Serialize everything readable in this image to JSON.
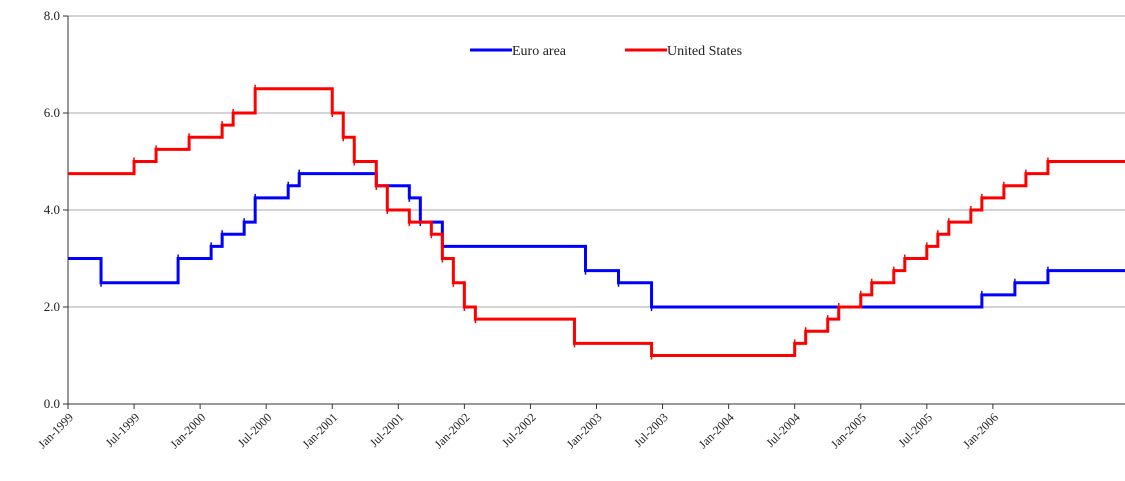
{
  "chart_data": {
    "type": "line",
    "step": true,
    "ylim": [
      0,
      8
    ],
    "yticks": [
      "0.0",
      "2.0",
      "4.0",
      "6.0",
      "8.0"
    ],
    "xlim": [
      "1999-01",
      "2007-01"
    ],
    "xtick_labels": [
      "Jan-1999",
      "Jul-1999",
      "Jan-2000",
      "Jul-2000",
      "Jan-2001",
      "Jul-2001",
      "Jan-2002",
      "Jul-2002",
      "Jan-2003",
      "Jul-2003",
      "Jan-2004",
      "Jul-2004",
      "Jan-2005",
      "Jul-2005",
      "Jan-2006"
    ],
    "xtick_dates": [
      "1999-01",
      "1999-07",
      "2000-01",
      "2000-07",
      "2001-01",
      "2001-07",
      "2002-01",
      "2002-07",
      "2003-01",
      "2003-07",
      "2004-01",
      "2004-07",
      "2005-01",
      "2005-07",
      "2006-01"
    ],
    "grid": "horizontal",
    "legend_position": "top-center",
    "series": [
      {
        "name": "Euro area",
        "color": "#0000ff",
        "points": [
          [
            "1999-01",
            3.0
          ],
          [
            "1999-04",
            2.5
          ],
          [
            "1999-11",
            3.0
          ],
          [
            "2000-02",
            3.25
          ],
          [
            "2000-03",
            3.5
          ],
          [
            "2000-05",
            3.75
          ],
          [
            "2000-06",
            4.25
          ],
          [
            "2000-09",
            4.5
          ],
          [
            "2000-10",
            4.75
          ],
          [
            "2001-05",
            4.5
          ],
          [
            "2001-08",
            4.25
          ],
          [
            "2001-09",
            3.75
          ],
          [
            "2001-11",
            3.25
          ],
          [
            "2002-12",
            2.75
          ],
          [
            "2003-03",
            2.5
          ],
          [
            "2003-06",
            2.0
          ],
          [
            "2005-12",
            2.25
          ],
          [
            "2006-03",
            2.5
          ],
          [
            "2006-06",
            2.75
          ]
        ]
      },
      {
        "name": "United States",
        "color": "#ff0000",
        "points": [
          [
            "1999-01",
            4.75
          ],
          [
            "1999-07",
            5.0
          ],
          [
            "1999-09",
            5.25
          ],
          [
            "1999-12",
            5.5
          ],
          [
            "2000-03",
            5.75
          ],
          [
            "2000-04",
            6.0
          ],
          [
            "2000-06",
            6.5
          ],
          [
            "2001-01",
            6.0
          ],
          [
            "2001-02",
            5.5
          ],
          [
            "2001-03",
            5.0
          ],
          [
            "2001-05",
            4.5
          ],
          [
            "2001-06",
            4.0
          ],
          [
            "2001-08",
            3.75
          ],
          [
            "2001-10",
            3.5
          ],
          [
            "2001-11",
            3.0
          ],
          [
            "2001-12",
            2.5
          ],
          [
            "2002-01",
            2.0
          ],
          [
            "2002-02",
            1.75
          ],
          [
            "2002-11",
            1.25
          ],
          [
            "2003-06",
            1.0
          ],
          [
            "2004-07",
            1.25
          ],
          [
            "2004-08",
            1.5
          ],
          [
            "2004-10",
            1.75
          ],
          [
            "2004-11",
            2.0
          ],
          [
            "2005-01",
            2.25
          ],
          [
            "2005-02",
            2.5
          ],
          [
            "2005-04",
            2.75
          ],
          [
            "2005-05",
            3.0
          ],
          [
            "2005-07",
            3.25
          ],
          [
            "2005-08",
            3.5
          ],
          [
            "2005-09",
            3.75
          ],
          [
            "2005-11",
            4.0
          ],
          [
            "2005-12",
            4.25
          ],
          [
            "2006-02",
            4.5
          ],
          [
            "2006-04",
            4.75
          ],
          [
            "2006-06",
            5.0
          ]
        ]
      }
    ]
  }
}
